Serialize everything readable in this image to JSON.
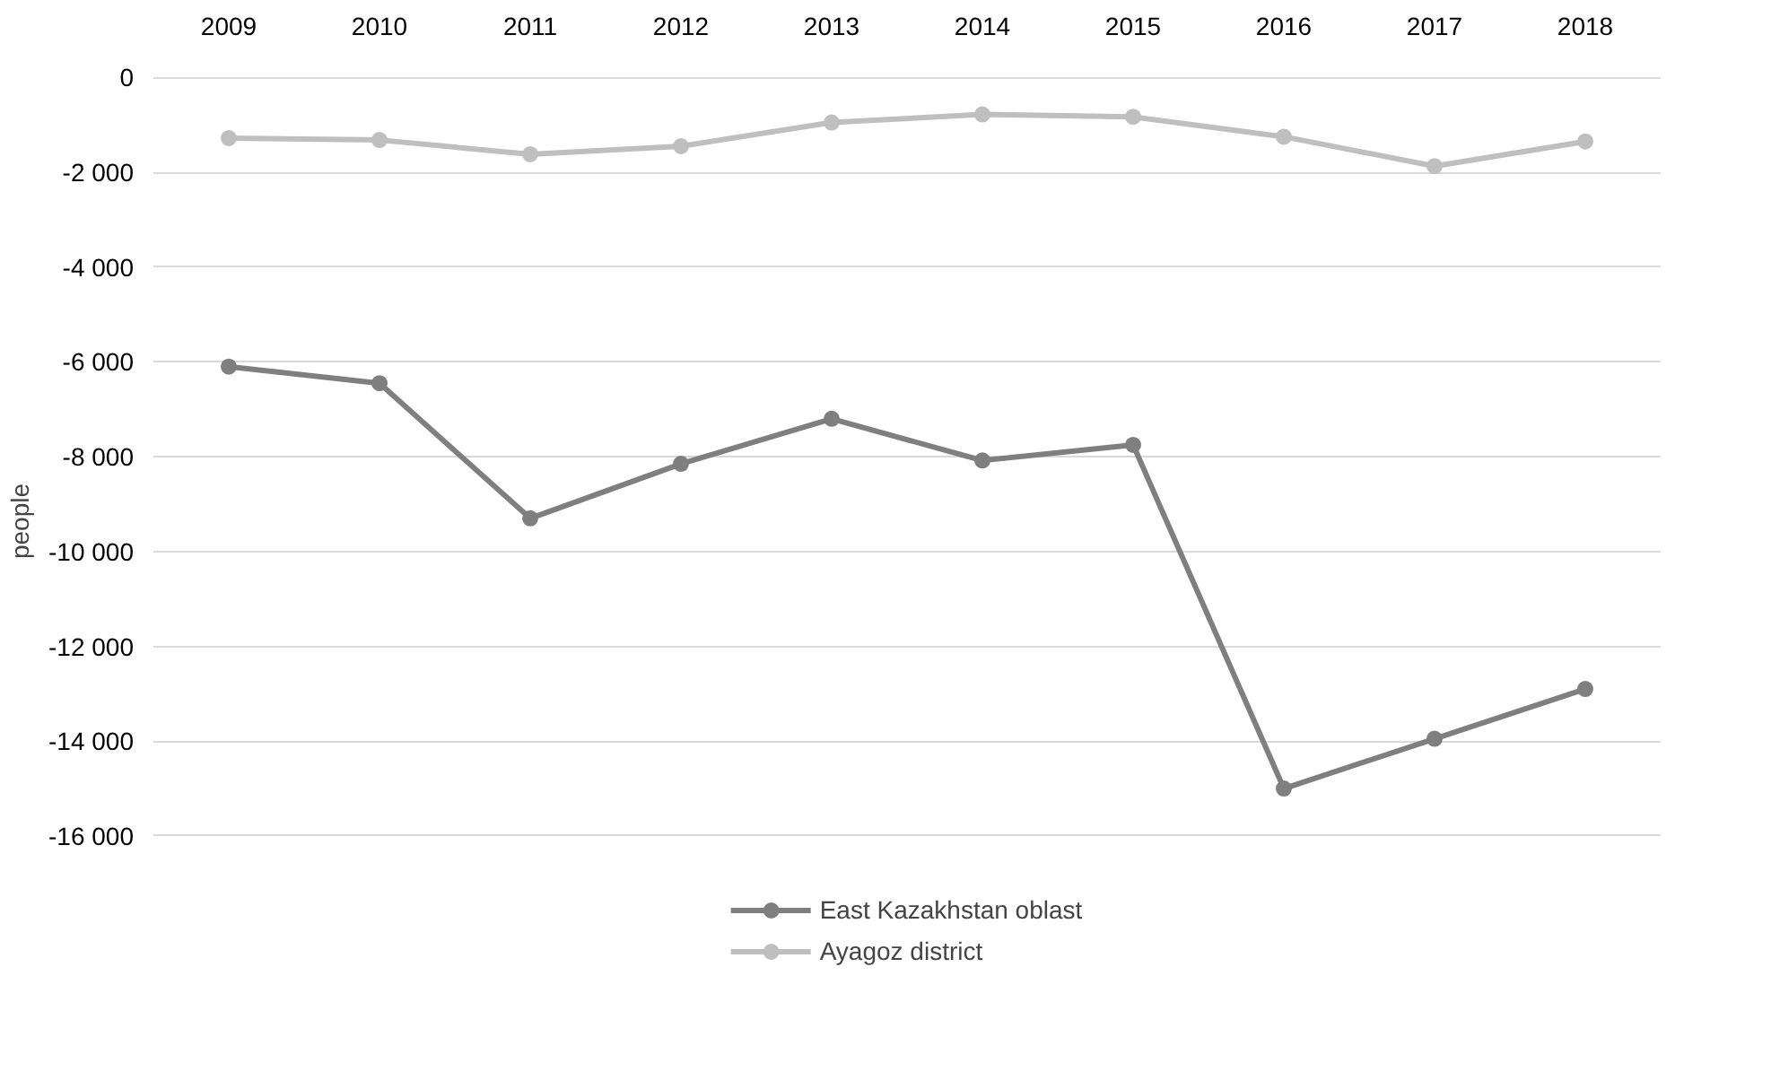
{
  "chart_data": {
    "type": "line",
    "ylabel": "people",
    "categories": [
      "2009",
      "2010",
      "2011",
      "2012",
      "2013",
      "2014",
      "2015",
      "2016",
      "2017",
      "2018"
    ],
    "series": [
      {
        "name": "East Kazakhstan oblast",
        "color": "#7f7f7f",
        "values": [
          -6100,
          -6450,
          -9300,
          -8150,
          -7200,
          -8080,
          -7750,
          -15000,
          -13950,
          -12900
        ]
      },
      {
        "name": "Ayagoz district",
        "color": "#bfbfbf",
        "values": [
          -1280,
          -1320,
          -1620,
          -1450,
          -950,
          -780,
          -830,
          -1250,
          -1870,
          -1350
        ]
      }
    ],
    "ylim": [
      -16000,
      0
    ],
    "yticks": [
      {
        "value": 0,
        "label": "0"
      },
      {
        "value": -2000,
        "label": "-2 000"
      },
      {
        "value": -4000,
        "label": "-4 000"
      },
      {
        "value": -6000,
        "label": "-6 000"
      },
      {
        "value": -8000,
        "label": "-8 000"
      },
      {
        "value": -10000,
        "label": "-10 000"
      },
      {
        "value": -12000,
        "label": "-12 000"
      },
      {
        "value": -14000,
        "label": "-14 000"
      },
      {
        "value": -16000,
        "label": "-16 000"
      }
    ],
    "grid": "y",
    "legend": "bottom",
    "marker": "circle",
    "line_style": "solid"
  }
}
